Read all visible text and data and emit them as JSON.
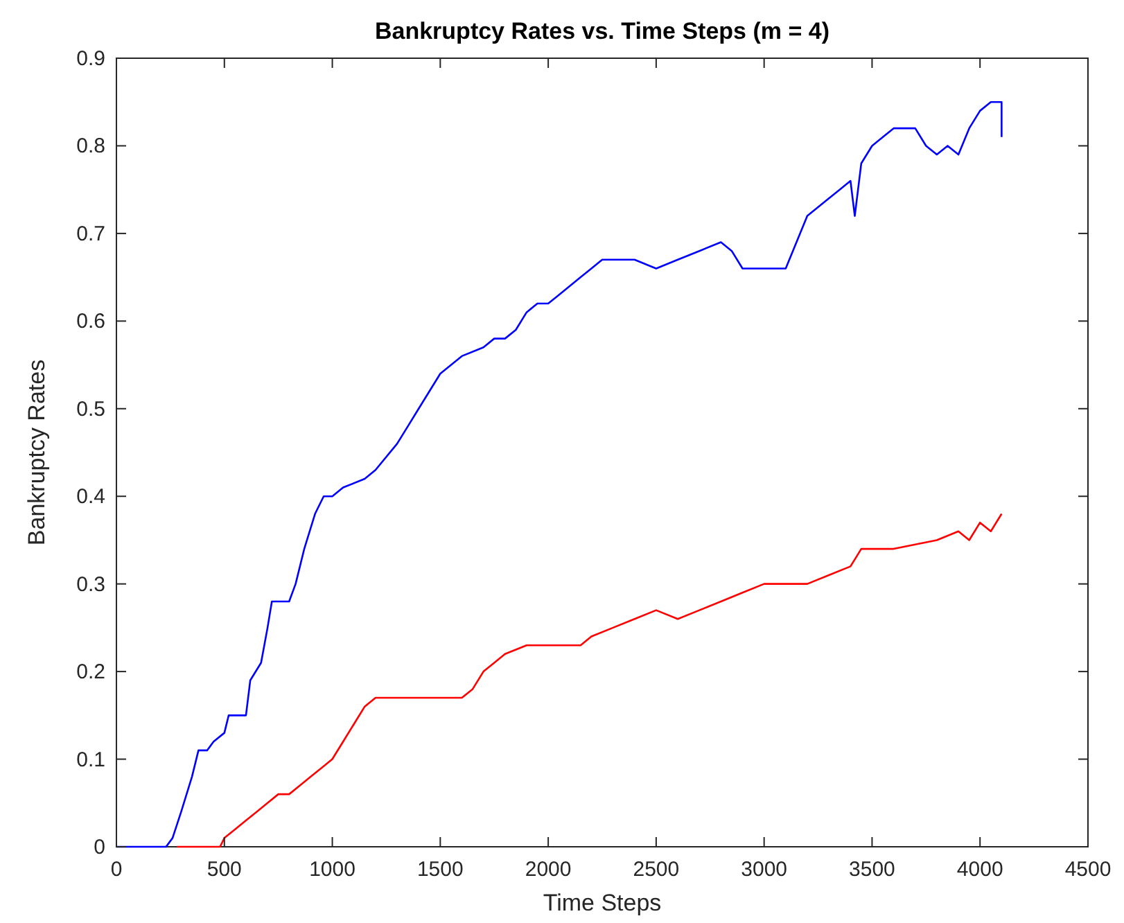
{
  "chart_data": {
    "type": "line",
    "title": "Bankruptcy Rates vs. Time Steps (m = 4)",
    "xlabel": "Time Steps",
    "ylabel": "Bankruptcy Rates",
    "xlim": [
      0,
      4500
    ],
    "xticks": [
      0,
      500,
      1000,
      1500,
      2000,
      2500,
      3000,
      3500,
      4000,
      4500
    ],
    "ylim": [
      0,
      0.9
    ],
    "yticks": [
      0,
      0.1,
      0.2,
      0.3,
      0.4,
      0.5,
      0.6,
      0.7,
      0.8,
      0.9
    ],
    "grid": false,
    "line_style": "solid",
    "series": [
      {
        "color": "#0000ff",
        "x": [
          0,
          230,
          260,
          300,
          350,
          380,
          420,
          450,
          500,
          520,
          600,
          620,
          670,
          700,
          720,
          800,
          830,
          870,
          920,
          960,
          1000,
          1050,
          1150,
          1200,
          1300,
          1350,
          1400,
          1450,
          1500,
          1600,
          1700,
          1750,
          1800,
          1850,
          1900,
          1950,
          2000,
          2050,
          2100,
          2150,
          2200,
          2250,
          2400,
          2500,
          2600,
          2700,
          2800,
          2850,
          2900,
          3000,
          3100,
          3150,
          3200,
          3300,
          3350,
          3400,
          3420,
          3450,
          3500,
          3550,
          3600,
          3700,
          3750,
          3800,
          3850,
          3900,
          3950,
          4000,
          4050,
          4100,
          4100
        ],
        "values": [
          0,
          0,
          0.01,
          0.04,
          0.08,
          0.11,
          0.11,
          0.12,
          0.13,
          0.15,
          0.15,
          0.19,
          0.21,
          0.25,
          0.28,
          0.28,
          0.3,
          0.34,
          0.38,
          0.4,
          0.4,
          0.41,
          0.42,
          0.43,
          0.46,
          0.48,
          0.5,
          0.52,
          0.54,
          0.56,
          0.57,
          0.58,
          0.58,
          0.59,
          0.61,
          0.62,
          0.62,
          0.63,
          0.64,
          0.65,
          0.66,
          0.67,
          0.67,
          0.66,
          0.67,
          0.68,
          0.69,
          0.68,
          0.66,
          0.66,
          0.66,
          0.69,
          0.72,
          0.74,
          0.75,
          0.76,
          0.72,
          0.78,
          0.8,
          0.81,
          0.82,
          0.82,
          0.8,
          0.79,
          0.8,
          0.79,
          0.82,
          0.84,
          0.85,
          0.85,
          0.81
        ]
      },
      {
        "color": "#ff0000",
        "x": [
          280,
          480,
          500,
          550,
          600,
          650,
          700,
          750,
          800,
          850,
          900,
          950,
          1000,
          1050,
          1100,
          1150,
          1200,
          1600,
          1650,
          1700,
          1750,
          1800,
          1900,
          2150,
          2200,
          2300,
          2400,
          2500,
          2600,
          2700,
          2800,
          2900,
          3000,
          3200,
          3300,
          3400,
          3450,
          3600,
          3800,
          3900,
          3950,
          4000,
          4050,
          4100
        ],
        "values": [
          0,
          0,
          0.01,
          0.02,
          0.03,
          0.04,
          0.05,
          0.06,
          0.06,
          0.07,
          0.08,
          0.09,
          0.1,
          0.12,
          0.14,
          0.16,
          0.17,
          0.17,
          0.18,
          0.2,
          0.21,
          0.22,
          0.23,
          0.23,
          0.24,
          0.25,
          0.26,
          0.27,
          0.26,
          0.27,
          0.28,
          0.29,
          0.3,
          0.3,
          0.31,
          0.32,
          0.34,
          0.34,
          0.35,
          0.36,
          0.35,
          0.37,
          0.36,
          0.38
        ]
      }
    ]
  }
}
